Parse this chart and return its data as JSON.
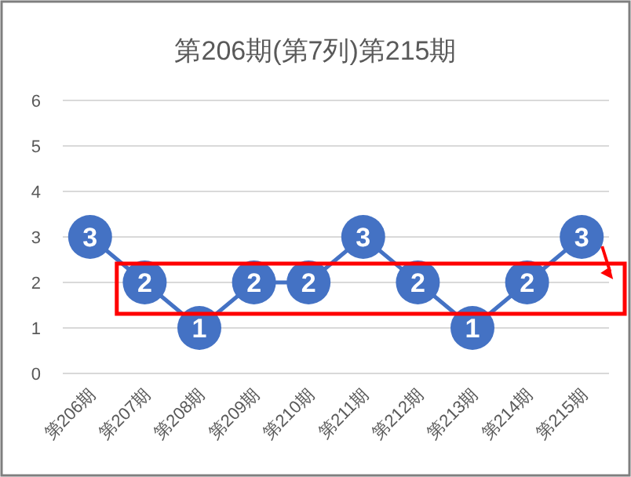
{
  "chart_data": {
    "type": "line",
    "title": "第206期(第7列)第215期",
    "categories": [
      "第206期",
      "第207期",
      "第208期",
      "第209期",
      "第210期",
      "第211期",
      "第212期",
      "第213期",
      "第214期",
      "第215期"
    ],
    "series": [
      {
        "color": "#4472c4",
        "values": [
          3,
          2,
          1,
          2,
          2,
          3,
          2,
          1,
          2,
          3
        ]
      }
    ],
    "ylim": [
      0,
      6
    ],
    "yticks": [
      0,
      1,
      2,
      3,
      4,
      5,
      6
    ],
    "grid": "y",
    "marker": "circle",
    "data_labels": true
  }
}
